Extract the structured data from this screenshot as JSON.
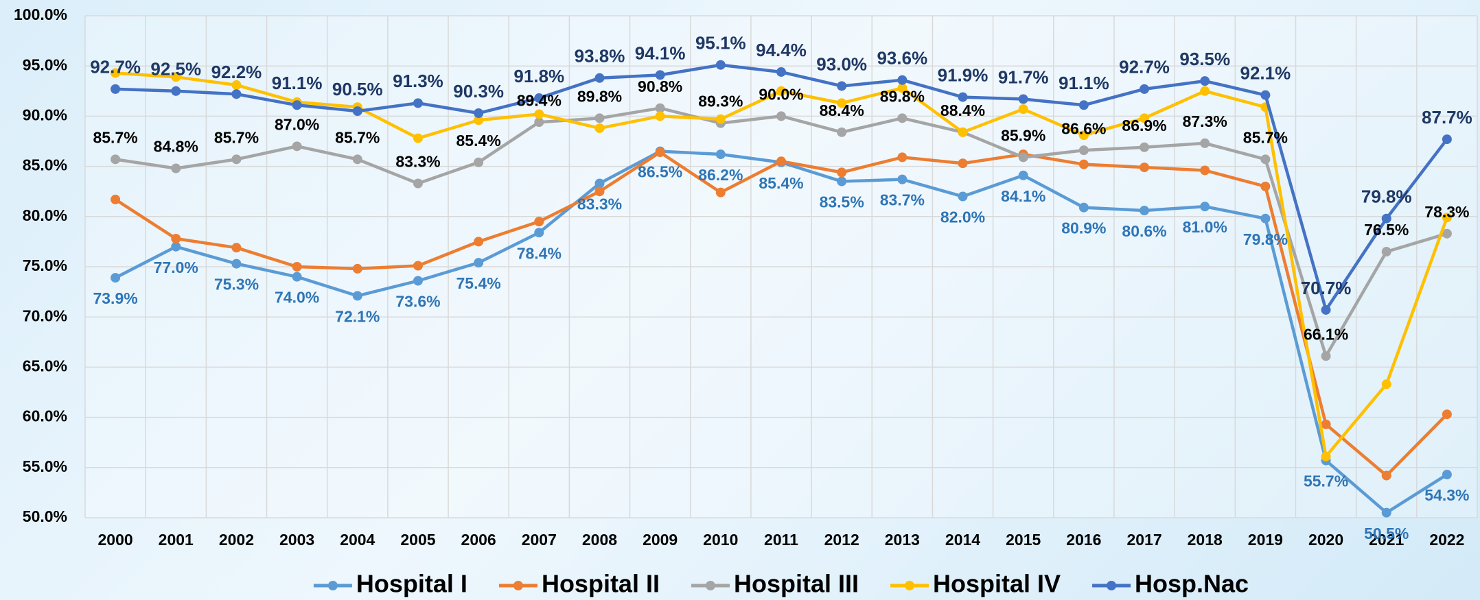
{
  "chart_data": {
    "type": "line",
    "categories": [
      "2000",
      "2001",
      "2002",
      "2003",
      "2004",
      "2005",
      "2006",
      "2007",
      "2008",
      "2009",
      "2010",
      "2011",
      "2012",
      "2013",
      "2014",
      "2015",
      "2016",
      "2017",
      "2018",
      "2019",
      "2020",
      "2021",
      "2022"
    ],
    "ylim": [
      50,
      100
    ],
    "yticks": [
      {
        "value": 50,
        "label": "50.0%"
      },
      {
        "value": 55,
        "label": "55.0%"
      },
      {
        "value": 60,
        "label": "60.0%"
      },
      {
        "value": 65,
        "label": "65.0%"
      },
      {
        "value": 70,
        "label": "70.0%"
      },
      {
        "value": 75,
        "label": "75.0%"
      },
      {
        "value": 80,
        "label": "80.0%"
      },
      {
        "value": 85,
        "label": "85.0%"
      },
      {
        "value": 90,
        "label": "90.0%"
      },
      {
        "value": 95,
        "label": "95.0%"
      },
      {
        "value": 100,
        "label": "100.0%"
      }
    ],
    "grid": true,
    "legend": "bottom",
    "series": [
      {
        "name": "Hospital I",
        "color": "#5b9bd5",
        "label_color": "#2e75b6",
        "label_position": "below",
        "values": [
          73.9,
          77.0,
          75.3,
          74.0,
          72.1,
          73.6,
          75.4,
          78.4,
          83.3,
          86.5,
          86.2,
          85.4,
          83.5,
          83.7,
          82.0,
          84.1,
          80.9,
          80.6,
          81.0,
          79.8,
          55.7,
          50.5,
          54.3
        ],
        "value_labels": [
          "73.9%",
          "77.0%",
          "75.3%",
          "74.0%",
          "72.1%",
          "73.6%",
          "75.4%",
          "78.4%",
          "83.3%",
          "86.5%",
          "86.2%",
          "85.4%",
          "83.5%",
          "83.7%",
          "82.0%",
          "84.1%",
          "80.9%",
          "80.6%",
          "81.0%",
          "79.8%",
          "55.7%",
          "50.5%",
          "54.3%"
        ]
      },
      {
        "name": "Hospital II",
        "color": "#ed7d31",
        "values": [
          81.7,
          77.8,
          76.9,
          75.0,
          74.8,
          75.1,
          77.5,
          79.5,
          82.5,
          86.4,
          82.4,
          85.5,
          84.4,
          85.9,
          85.3,
          86.2,
          85.2,
          84.9,
          84.6,
          83.0,
          59.3,
          54.2,
          60.3
        ]
      },
      {
        "name": "Hospital III",
        "color": "#a5a5a5",
        "label_color": "#000000",
        "label_position": "above",
        "values": [
          85.7,
          84.8,
          85.7,
          87.0,
          85.7,
          83.3,
          85.4,
          89.4,
          89.8,
          90.8,
          89.3,
          90.0,
          88.4,
          89.8,
          88.4,
          85.9,
          86.6,
          86.9,
          87.3,
          85.7,
          66.1,
          76.5,
          78.3
        ],
        "value_labels": [
          "85.7%",
          "84.8%",
          "85.7%",
          "87.0%",
          "85.7%",
          "83.3%",
          "85.4%",
          "89.4%",
          "89.8%",
          "90.8%",
          "89.3%",
          "90.0%",
          "88.4%",
          "89.8%",
          "88.4%",
          "85.9%",
          "86.6%",
          "86.9%",
          "87.3%",
          "85.7%",
          "66.1%",
          "76.5%",
          "78.3%"
        ]
      },
      {
        "name": "Hospital IV",
        "color": "#ffc000",
        "values": [
          94.3,
          93.9,
          93.1,
          91.4,
          90.9,
          87.8,
          89.6,
          90.2,
          88.8,
          90.0,
          89.7,
          92.5,
          91.3,
          92.8,
          88.4,
          90.7,
          88.1,
          89.8,
          92.5,
          90.9,
          56.1,
          63.3,
          79.9
        ]
      },
      {
        "name": "Hosp.Nac",
        "color": "#4472c4",
        "label_color": "#1f3864",
        "label_position": "above",
        "values": [
          92.7,
          92.5,
          92.2,
          91.1,
          90.5,
          91.3,
          90.3,
          91.8,
          93.8,
          94.1,
          95.1,
          94.4,
          93.0,
          93.6,
          91.9,
          91.7,
          91.1,
          92.7,
          93.5,
          92.1,
          70.7,
          79.8,
          87.7
        ],
        "value_labels": [
          "92.7%",
          "92.5%",
          "92.2%",
          "91.1%",
          "90.5%",
          "91.3%",
          "90.3%",
          "91.8%",
          "93.8%",
          "94.1%",
          "95.1%",
          "94.4%",
          "93.0%",
          "93.6%",
          "91.9%",
          "91.7%",
          "91.1%",
          "92.7%",
          "93.5%",
          "92.1%",
          "70.7%",
          "79.8%",
          "87.7%"
        ]
      }
    ]
  }
}
